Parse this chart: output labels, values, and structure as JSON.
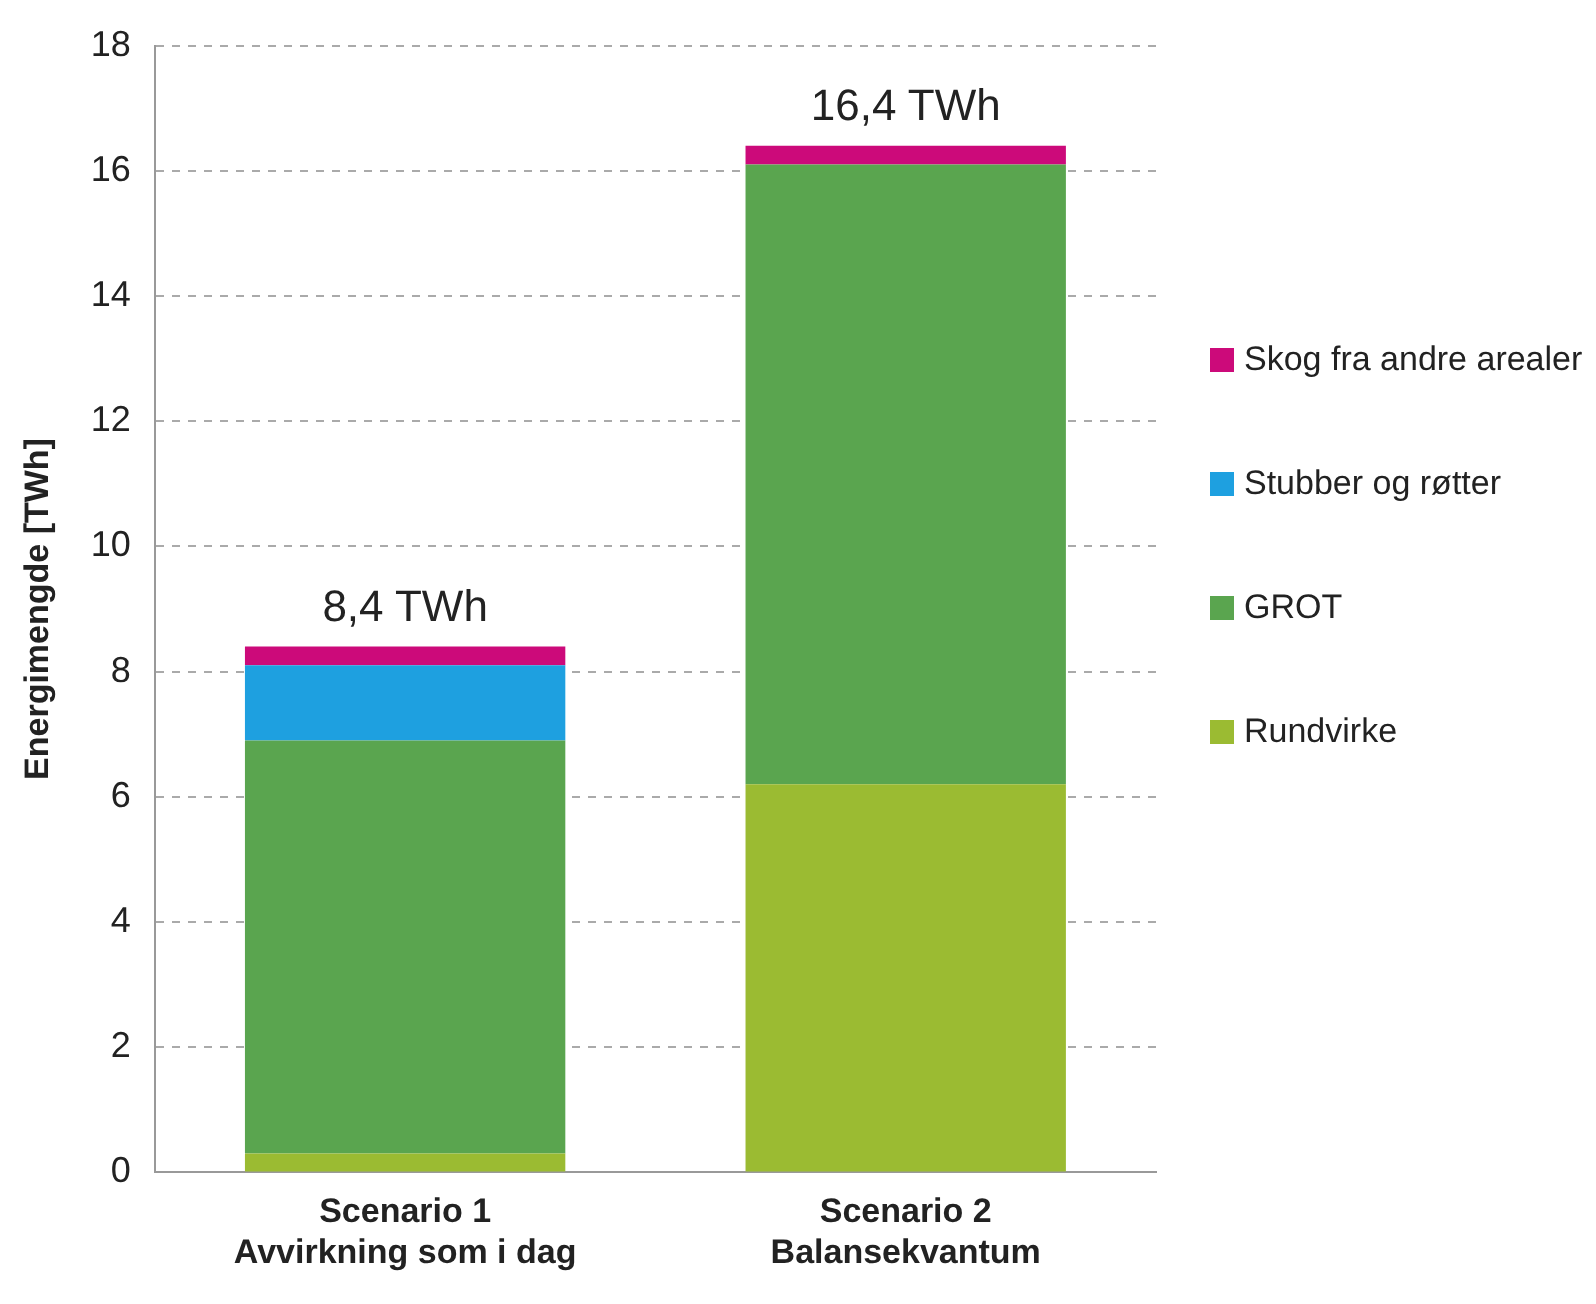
{
  "chart_data": {
    "type": "bar",
    "stacked": true,
    "ylabel": "Energimengde [TWh]",
    "categories": [
      "Scenario 1\nAvvirkning som i dag",
      "Scenario 2\nBalansekvantum"
    ],
    "series": [
      {
        "name": "Rundvirke",
        "color": "#9bbb32",
        "values": [
          0.3,
          6.2
        ]
      },
      {
        "name": "GROT",
        "color": "#5aa54f",
        "values": [
          6.6,
          9.9
        ]
      },
      {
        "name": "Stubber og røtter",
        "color": "#1ea0e0",
        "values": [
          1.2,
          0
        ]
      },
      {
        "name": "Skog fra andre arealer",
        "color": "#cc0a7a",
        "values": [
          0.3,
          0.3
        ]
      }
    ],
    "totals": [
      "8,4 TWh",
      "16,4 TWh"
    ],
    "ylim": [
      0,
      18
    ],
    "yticks": [
      0,
      2,
      4,
      6,
      8,
      10,
      12,
      14,
      16,
      18
    ],
    "grid": "y",
    "legend": "right"
  }
}
